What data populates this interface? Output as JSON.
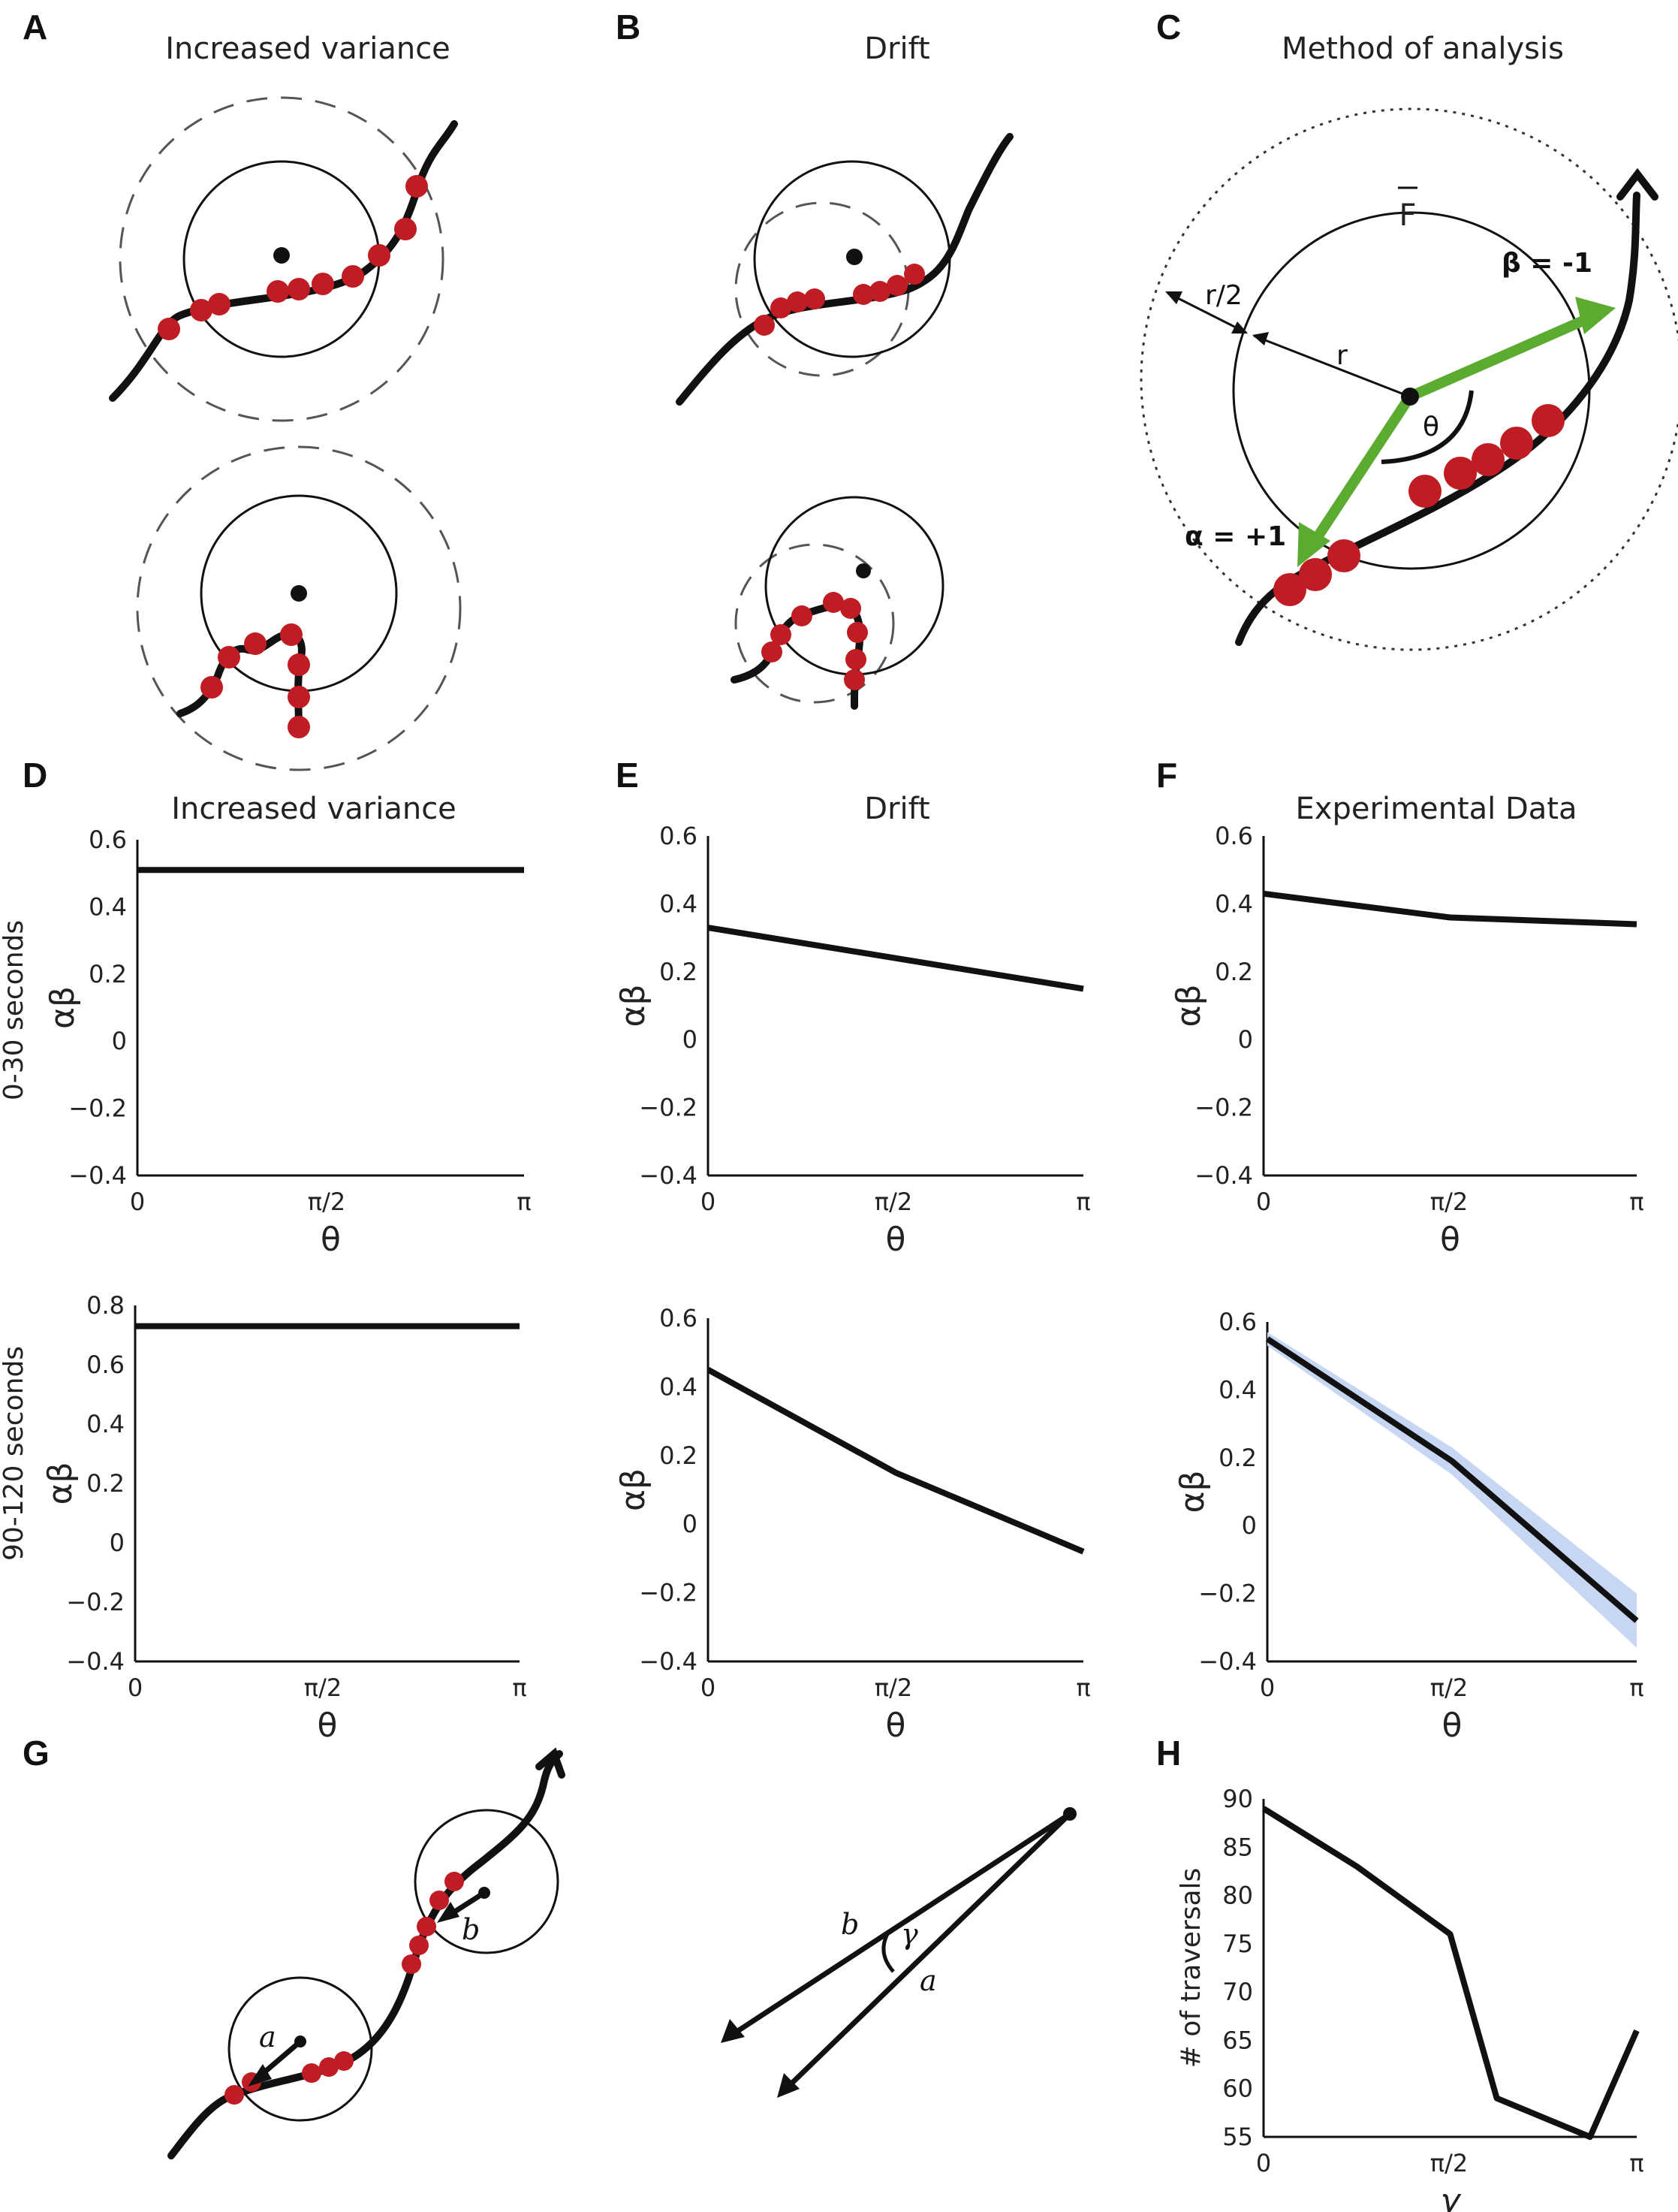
{
  "panels": {
    "A": {
      "letter": "A",
      "title": "Increased variance"
    },
    "B": {
      "letter": "B",
      "title": "Drift"
    },
    "C": {
      "letter": "C",
      "title": "Method of analysis",
      "labels": {
        "fbar": "F",
        "beta": "β = -1",
        "alpha": "α = +1",
        "r_half": "r/2",
        "r": "r",
        "theta": "θ"
      }
    },
    "G": {
      "letter": "G",
      "labels": {
        "a": "a",
        "b": "b",
        "a2": "a",
        "b2": "b",
        "gamma": "γ"
      }
    },
    "H": {
      "letter": "H"
    }
  },
  "row_labels": {
    "top": "0-30 seconds",
    "bottom": "90-120 seconds"
  },
  "colors": {
    "trajectory": "#111111",
    "dots": "#c01c24",
    "vector": "#5aab2f",
    "band": "#c7d6f2"
  },
  "chart_data": [
    {
      "id": "D_top",
      "letter": "D",
      "title": "Increased variance",
      "type": "line",
      "x": [
        0,
        1.5708,
        3.1416
      ],
      "x_ticks": [
        "0",
        "π/2",
        "π"
      ],
      "xlabel": "θ",
      "ylabel": "αβ",
      "ylim": [
        -0.4,
        0.6
      ],
      "y_ticks": [
        "0.6",
        "0.4",
        "0.2",
        "0",
        "−0.2",
        "−0.4"
      ],
      "series": [
        {
          "values": [
            0.51,
            0.51,
            0.51
          ]
        }
      ]
    },
    {
      "id": "E_top",
      "letter": "E",
      "title": "Drift",
      "type": "line",
      "x": [
        0,
        1.5708,
        3.1416
      ],
      "x_ticks": [
        "0",
        "π/2",
        "π"
      ],
      "xlabel": "θ",
      "ylabel": "αβ",
      "ylim": [
        -0.4,
        0.6
      ],
      "y_ticks": [
        "0.6",
        "0.4",
        "0.2",
        "0",
        "−0.2",
        "−0.4"
      ],
      "series": [
        {
          "values": [
            0.33,
            0.24,
            0.15
          ]
        }
      ]
    },
    {
      "id": "F_top",
      "letter": "F",
      "title": "Experimental Data",
      "type": "line",
      "x": [
        0,
        1.5708,
        3.1416
      ],
      "x_ticks": [
        "0",
        "π/2",
        "π"
      ],
      "xlabel": "θ",
      "ylabel": "αβ",
      "ylim": [
        -0.4,
        0.6
      ],
      "y_ticks": [
        "0.6",
        "0.4",
        "0.2",
        "0",
        "−0.2",
        "−0.4"
      ],
      "series": [
        {
          "values": [
            0.43,
            0.36,
            0.34
          ]
        }
      ]
    },
    {
      "id": "D_bottom",
      "title": "",
      "type": "line",
      "x": [
        0,
        1.5708,
        3.1416
      ],
      "x_ticks": [
        "0",
        "π/2",
        "π"
      ],
      "xlabel": "θ",
      "ylabel": "αβ",
      "ylim": [
        -0.4,
        0.8
      ],
      "y_ticks": [
        "0.8",
        "0.6",
        "0.4",
        "0.2",
        "0",
        "−0.2",
        "−0.4"
      ],
      "series": [
        {
          "values": [
            0.73,
            0.73,
            0.73
          ]
        }
      ]
    },
    {
      "id": "E_bottom",
      "title": "",
      "type": "line",
      "x": [
        0,
        1.5708,
        3.1416
      ],
      "x_ticks": [
        "0",
        "π/2",
        "π"
      ],
      "xlabel": "θ",
      "ylabel": "αβ",
      "ylim": [
        -0.4,
        0.6
      ],
      "y_ticks": [
        "0.6",
        "0.4",
        "0.2",
        "0",
        "−0.2",
        "−0.4"
      ],
      "series": [
        {
          "values": [
            0.45,
            0.15,
            -0.08
          ]
        }
      ]
    },
    {
      "id": "F_bottom",
      "title": "",
      "type": "area",
      "x": [
        0,
        1.5708,
        3.1416
      ],
      "x_ticks": [
        "0",
        "π/2",
        "π"
      ],
      "xlabel": "θ",
      "ylabel": "αβ",
      "ylim": [
        -0.4,
        0.6
      ],
      "y_ticks": [
        "0.6",
        "0.4",
        "0.2",
        "0",
        "−0.2",
        "−0.4"
      ],
      "series": [
        {
          "values": [
            0.55,
            0.19,
            -0.28
          ],
          "lower": [
            0.53,
            0.15,
            -0.36
          ],
          "upper": [
            0.57,
            0.23,
            -0.2
          ]
        }
      ]
    },
    {
      "id": "H",
      "title": "",
      "type": "line",
      "x": [
        0,
        0.3927,
        0.7854,
        1.1781,
        1.5708,
        1.9635,
        2.3562,
        2.7489,
        3.1416
      ],
      "x_ticks": [
        "0",
        "π/2",
        "π"
      ],
      "xlabel": "γ",
      "ylabel": "# of traversals",
      "ylim": [
        55,
        90
      ],
      "y_ticks": [
        "90",
        "85",
        "80",
        "75",
        "70",
        "65",
        "60",
        "55"
      ],
      "series": [
        {
          "values": [
            89,
            86,
            83,
            79.5,
            76,
            59,
            57,
            55,
            66
          ]
        }
      ]
    }
  ]
}
